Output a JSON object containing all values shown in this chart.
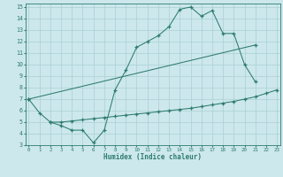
{
  "xlabel": "Humidex (Indice chaleur)",
  "line1_x": [
    0,
    1,
    2,
    3,
    4,
    5,
    6,
    7,
    8,
    9,
    10,
    11,
    12,
    13,
    14,
    15,
    16,
    17,
    18,
    19,
    20,
    21
  ],
  "line1_y": [
    7.0,
    5.8,
    5.0,
    4.7,
    4.3,
    4.3,
    3.2,
    4.3,
    7.8,
    9.5,
    11.5,
    12.0,
    12.5,
    13.3,
    14.8,
    15.0,
    14.2,
    14.7,
    12.7,
    12.7,
    10.0,
    8.5
  ],
  "line2_x": [
    0,
    21
  ],
  "line2_y": [
    7.0,
    11.7
  ],
  "line3_x": [
    2,
    3,
    4,
    5,
    6,
    7,
    8,
    9,
    10,
    11,
    12,
    13,
    14,
    15,
    16,
    17,
    18,
    19,
    20,
    21,
    22,
    23
  ],
  "line3_y": [
    5.0,
    5.0,
    5.1,
    5.2,
    5.3,
    5.4,
    5.5,
    5.6,
    5.7,
    5.8,
    5.9,
    6.0,
    6.1,
    6.2,
    6.35,
    6.5,
    6.65,
    6.8,
    7.0,
    7.2,
    7.5,
    7.8
  ],
  "line_color": "#2e7b6e",
  "bg_color": "#cce8ec",
  "grid_color": "#aacfd4",
  "xlim": [
    -0.3,
    23.3
  ],
  "ylim": [
    3,
    15
  ],
  "xticks": [
    0,
    1,
    2,
    3,
    4,
    5,
    6,
    7,
    8,
    9,
    10,
    11,
    12,
    13,
    14,
    15,
    16,
    17,
    18,
    19,
    20,
    21,
    22,
    23
  ],
  "yticks": [
    3,
    4,
    5,
    6,
    7,
    8,
    9,
    10,
    11,
    12,
    13,
    14,
    15
  ]
}
